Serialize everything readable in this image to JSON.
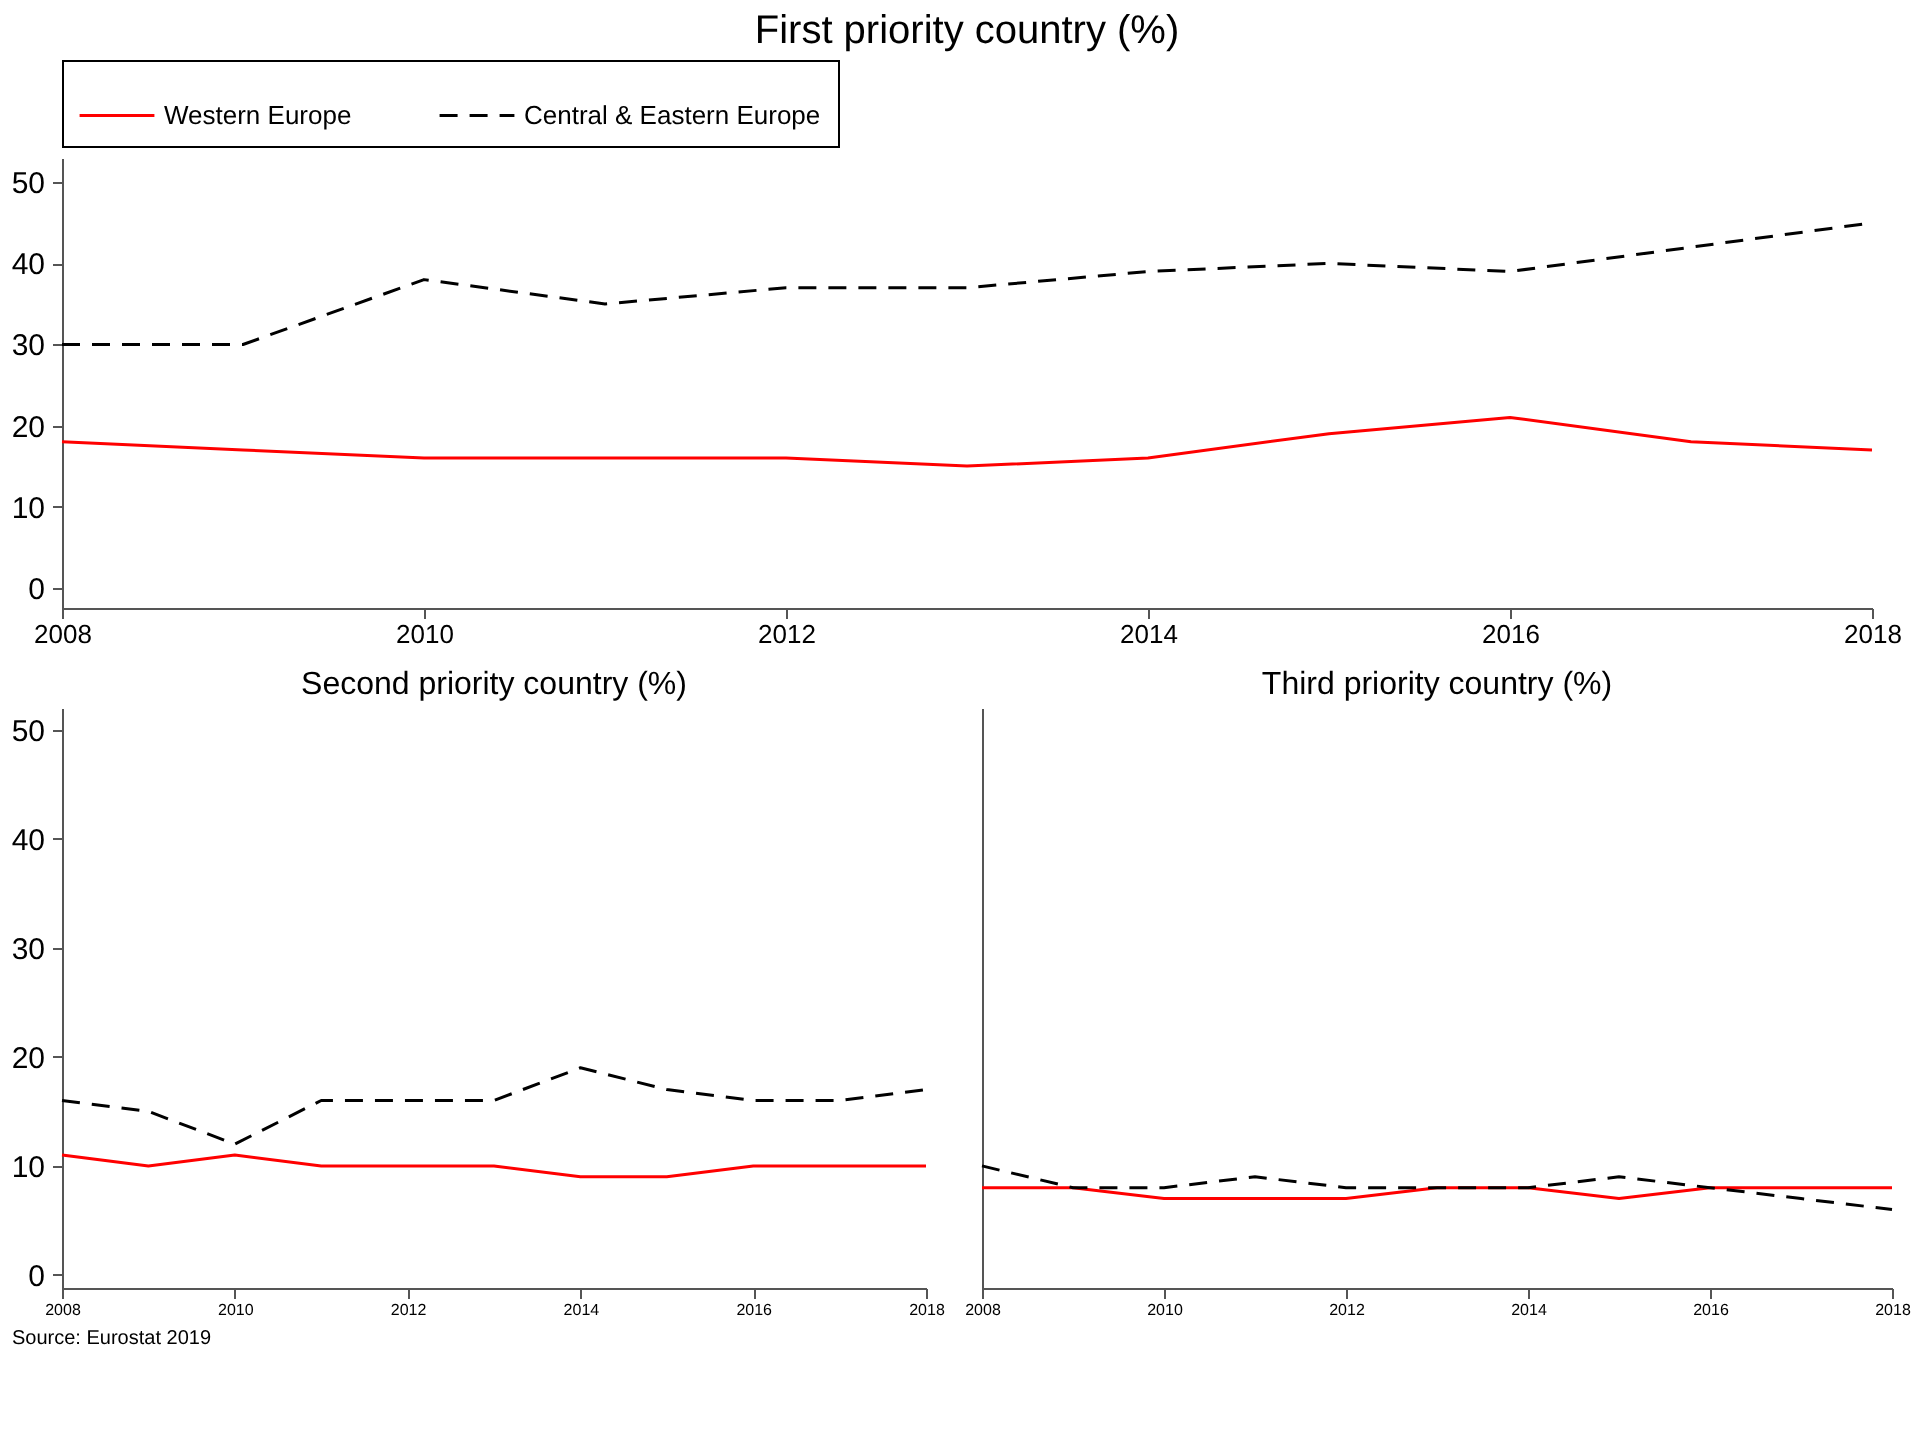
{
  "chart_data": [
    {
      "type": "line",
      "title": "First priority country (%)",
      "x": [
        2008,
        2009,
        2010,
        2011,
        2012,
        2013,
        2014,
        2015,
        2016,
        2017,
        2018
      ],
      "xlim": [
        2008,
        2018
      ],
      "xticks": [
        2008,
        2010,
        2012,
        2014,
        2016,
        2018
      ],
      "ylim": [
        -2.5,
        53
      ],
      "yticks": [
        0,
        10,
        20,
        30,
        40,
        50
      ],
      "grid": false,
      "legend": "top",
      "series": [
        {
          "name": "Western Europe",
          "color": "#ff0000",
          "line_style": "solid",
          "values": [
            18,
            17,
            16,
            16,
            16,
            15,
            16,
            19,
            21,
            18,
            17
          ]
        },
        {
          "name": "Central & Eastern Europe",
          "color": "#000000",
          "line_style": "dashed",
          "values": [
            30,
            30,
            38,
            35,
            37,
            37,
            39,
            40,
            39,
            42,
            45
          ]
        }
      ]
    },
    {
      "type": "line",
      "title": "Second priority country (%)",
      "x": [
        2008,
        2009,
        2010,
        2011,
        2012,
        2013,
        2014,
        2015,
        2016,
        2017,
        2018
      ],
      "xlim": [
        2008,
        2018
      ],
      "xticks": [
        2008,
        2010,
        2012,
        2014,
        2016,
        2018
      ],
      "ylim": [
        -1.2,
        52
      ],
      "yticks": [
        0,
        10,
        20,
        30,
        40,
        50
      ],
      "grid": false,
      "legend": false,
      "annotations": [
        "Source: Eurostat 2019"
      ],
      "series": [
        {
          "color": "#ff0000",
          "line_style": "solid",
          "values": [
            11,
            10,
            11,
            10,
            10,
            10,
            9,
            9,
            10,
            10,
            10
          ]
        },
        {
          "color": "#000000",
          "line_style": "dashed",
          "values": [
            16,
            15,
            12,
            16,
            16,
            16,
            19,
            17,
            16,
            16,
            17
          ]
        }
      ]
    },
    {
      "type": "line",
      "title": "Third priority country (%)",
      "x": [
        2008,
        2009,
        2010,
        2011,
        2012,
        2013,
        2014,
        2015,
        2016,
        2017,
        2018
      ],
      "xlim": [
        2008,
        2018
      ],
      "xticks": [
        2008,
        2010,
        2012,
        2014,
        2016,
        2018
      ],
      "ylim": [
        -1.2,
        52
      ],
      "yticks": [
        0,
        10,
        20,
        30,
        40,
        50
      ],
      "grid": false,
      "legend": false,
      "tick_labels": "x",
      "series": [
        {
          "color": "#ff0000",
          "line_style": "solid",
          "values": [
            8,
            8,
            7,
            7,
            7,
            8,
            8,
            7,
            8,
            8,
            8
          ]
        },
        {
          "color": "#000000",
          "line_style": "dashed",
          "values": [
            10,
            8,
            8,
            9,
            8,
            8,
            8,
            9,
            8,
            7,
            6
          ]
        }
      ]
    }
  ]
}
